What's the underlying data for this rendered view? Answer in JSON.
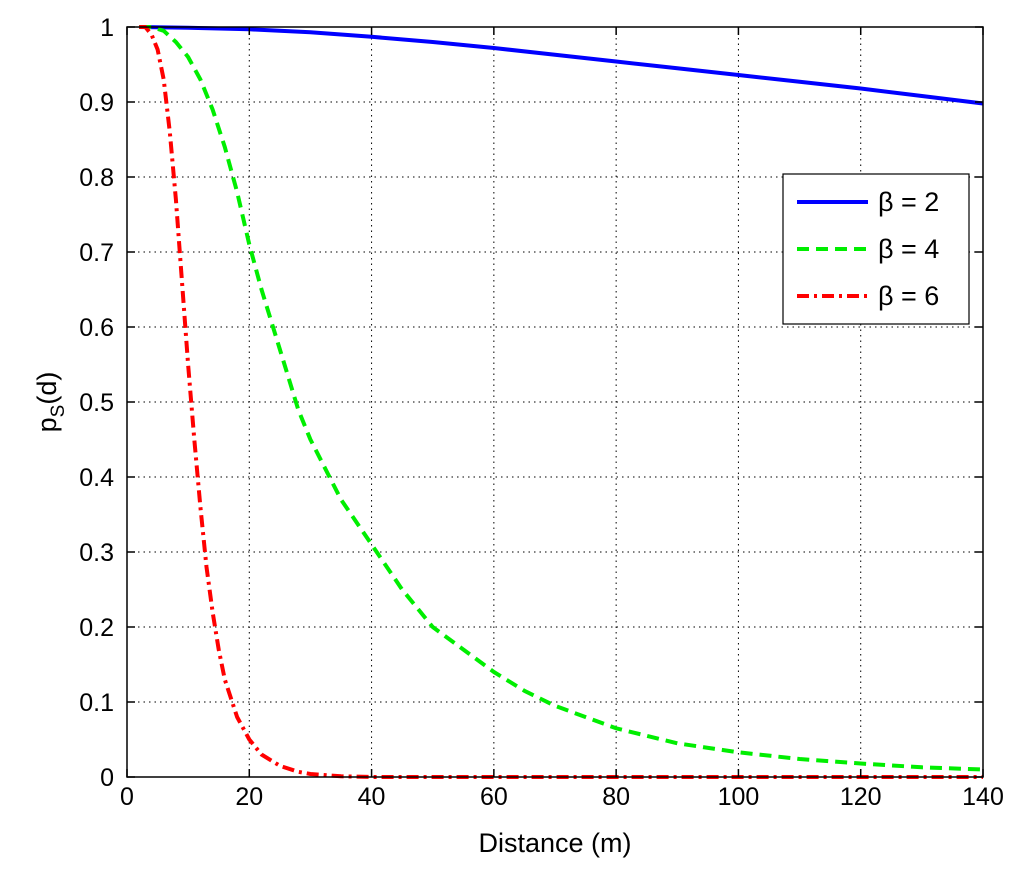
{
  "chart_data": {
    "type": "line",
    "xlabel": "Distance (m)",
    "ylabel": {
      "main": "p",
      "sub": "S",
      "tail": "(d)"
    },
    "xlim": [
      0,
      140
    ],
    "ylim": [
      0,
      1
    ],
    "xticks": [
      0,
      20,
      40,
      60,
      80,
      100,
      120,
      140
    ],
    "yticks": [
      0,
      0.1,
      0.2,
      0.3,
      0.4,
      0.5,
      0.6,
      0.7,
      0.8,
      0.9,
      1
    ],
    "xtick_labels": [
      "0",
      "20",
      "40",
      "60",
      "80",
      "100",
      "120",
      "140"
    ],
    "ytick_labels": [
      "0",
      "0.1",
      "0.2",
      "0.3",
      "0.4",
      "0.5",
      "0.6",
      "0.7",
      "0.8",
      "0.9",
      "1"
    ],
    "grid": true,
    "legend_position": "right",
    "series": [
      {
        "name": "β = 2",
        "color": "#0000ff",
        "style": "solid",
        "x": [
          2,
          10,
          20,
          30,
          40,
          50,
          60,
          70,
          80,
          90,
          100,
          110,
          120,
          130,
          140
        ],
        "y": [
          1.0,
          0.999,
          0.997,
          0.993,
          0.987,
          0.98,
          0.972,
          0.963,
          0.954,
          0.945,
          0.936,
          0.927,
          0.918,
          0.908,
          0.898
        ]
      },
      {
        "name": "β = 4",
        "color": "#00ee00",
        "style": "dashed",
        "x": [
          2,
          4,
          6,
          8,
          10,
          12,
          14,
          16,
          18,
          20,
          22,
          25,
          28,
          30,
          35,
          40,
          45,
          50,
          55,
          60,
          65,
          70,
          80,
          90,
          100,
          110,
          120,
          130,
          140
        ],
        "y": [
          1.0,
          1.0,
          0.995,
          0.98,
          0.96,
          0.93,
          0.89,
          0.84,
          0.78,
          0.71,
          0.65,
          0.57,
          0.49,
          0.45,
          0.37,
          0.31,
          0.25,
          0.2,
          0.17,
          0.14,
          0.115,
          0.095,
          0.065,
          0.045,
          0.033,
          0.024,
          0.018,
          0.013,
          0.01
        ]
      },
      {
        "name": "β = 6",
        "color": "#ff0000",
        "style": "dashdot",
        "x": [
          2,
          3,
          4,
          5,
          6,
          7,
          8,
          9,
          10,
          11,
          12,
          13,
          14,
          15,
          16,
          18,
          20,
          22,
          25,
          28,
          30,
          35,
          40,
          60,
          80,
          100,
          120,
          140
        ],
        "y": [
          1.0,
          1.0,
          0.99,
          0.97,
          0.93,
          0.86,
          0.77,
          0.66,
          0.55,
          0.45,
          0.36,
          0.28,
          0.22,
          0.17,
          0.13,
          0.08,
          0.05,
          0.03,
          0.015,
          0.007,
          0.004,
          0.001,
          0.0,
          0.0,
          0.0,
          0.0,
          0.0,
          0.0
        ]
      }
    ]
  }
}
